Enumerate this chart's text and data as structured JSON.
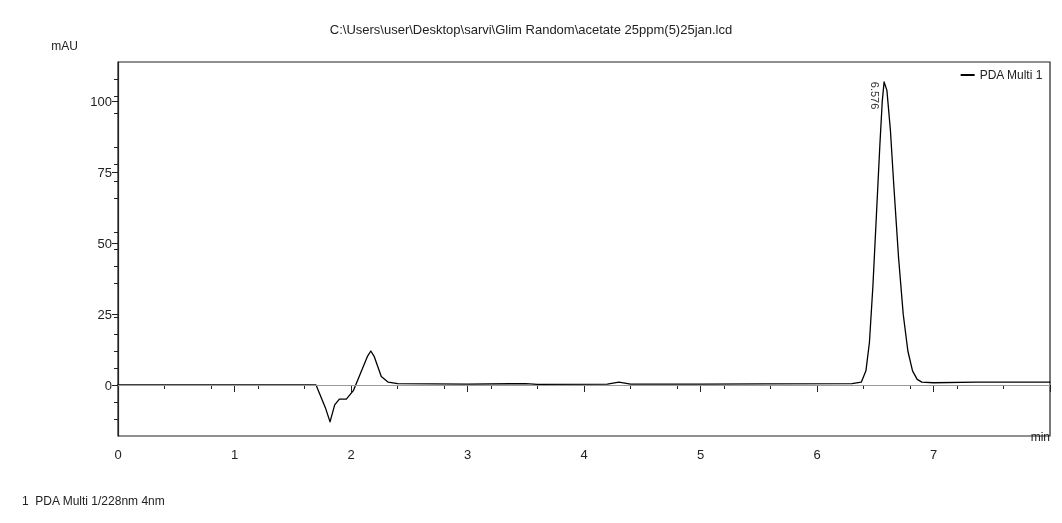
{
  "chart_data": {
    "type": "line",
    "title": "C:\\Users\\user\\Desktop\\sarvi\\Glim Random\\acetate 25ppm(5)25jan.lcd",
    "xlabel": "min",
    "ylabel": "mAU",
    "xlim": [
      0,
      8
    ],
    "xticks": [
      0,
      1,
      2,
      3,
      4,
      5,
      6,
      7,
      {
        "value": 8,
        "label": null
      }
    ],
    "ylim": [
      -18,
      114
    ],
    "yticks": [
      0,
      25,
      50,
      75,
      100
    ],
    "series": [
      {
        "name": "PDA Multi 1",
        "color": "#000000",
        "x": [
          0,
          1.7,
          1.78,
          1.82,
          1.86,
          1.9,
          1.96,
          2.02,
          2.08,
          2.14,
          2.17,
          2.2,
          2.26,
          2.32,
          2.4,
          3.0,
          3.5,
          3.6,
          4.2,
          4.3,
          4.4,
          5.0,
          6.3,
          6.38,
          6.42,
          6.45,
          6.48,
          6.51,
          6.54,
          6.56,
          6.576,
          6.6,
          6.63,
          6.66,
          6.7,
          6.74,
          6.78,
          6.82,
          6.86,
          6.9,
          7.0,
          7.37,
          8
        ],
        "values": [
          0,
          0,
          -8,
          -13,
          -7,
          -5,
          -5,
          -2,
          4,
          10,
          12,
          10,
          3,
          1,
          0.5,
          0.3,
          0.5,
          0.2,
          0.3,
          1,
          0.3,
          0.3,
          0.5,
          1,
          5,
          15,
          35,
          60,
          85,
          100,
          107,
          104,
          90,
          70,
          45,
          25,
          12,
          5,
          2,
          1,
          0.8,
          1,
          1
        ]
      }
    ],
    "ref_lines": [
      {
        "axis": "y",
        "value": 0,
        "label": null,
        "color": "#999999"
      }
    ],
    "annotations": [
      {
        "text": "6.576",
        "x": 6.576,
        "y": 107
      },
      "1  PDA Multi 1/228nm 4nm"
    ],
    "legend": "top right",
    "grid": false,
    "marker": "none",
    "line_style": "solid"
  }
}
